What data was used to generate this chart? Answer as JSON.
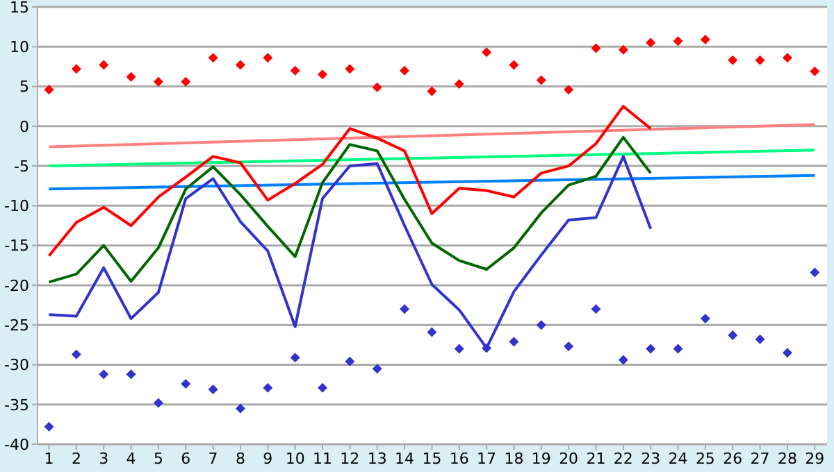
{
  "chart_data": {
    "type": "line",
    "x": [
      1,
      2,
      3,
      4,
      5,
      6,
      7,
      8,
      9,
      10,
      11,
      12,
      13,
      14,
      15,
      16,
      17,
      18,
      19,
      20,
      21,
      22,
      23,
      24,
      25,
      26,
      27,
      28,
      29
    ],
    "xlim": [
      0.58,
      29.45
    ],
    "xticks": [
      1,
      2,
      3,
      4,
      5,
      6,
      7,
      8,
      9,
      10,
      11,
      12,
      13,
      14,
      15,
      16,
      17,
      18,
      19,
      20,
      21,
      22,
      23,
      24,
      25,
      26,
      27,
      28,
      29
    ],
    "ylim": [
      -40,
      15
    ],
    "yticks": [
      -40,
      -35,
      -30,
      -25,
      -20,
      -15,
      -10,
      -5,
      0,
      5,
      10,
      15
    ],
    "grid": "y",
    "marker": "none",
    "line_style": "solid",
    "series": [
      {
        "color": "#ff8080",
        "values": [
          -2.6,
          null,
          null,
          null,
          null,
          null,
          null,
          null,
          null,
          null,
          null,
          null,
          null,
          null,
          null,
          null,
          null,
          null,
          null,
          null,
          null,
          null,
          null,
          null,
          null,
          null,
          null,
          null,
          0.2
        ]
      },
      {
        "color": "#00ff80",
        "values": [
          -5.0,
          null,
          null,
          null,
          null,
          null,
          null,
          null,
          null,
          null,
          null,
          null,
          null,
          null,
          null,
          null,
          null,
          null,
          null,
          null,
          null,
          null,
          null,
          null,
          null,
          null,
          null,
          null,
          -3.0
        ]
      },
      {
        "color": "#0080ff",
        "values": [
          -7.9,
          null,
          null,
          null,
          null,
          null,
          null,
          null,
          null,
          null,
          null,
          null,
          null,
          null,
          null,
          null,
          null,
          null,
          null,
          null,
          null,
          null,
          null,
          null,
          null,
          null,
          null,
          null,
          -6.2
        ]
      },
      {
        "color": "#ff0000",
        "values": [
          -16.3,
          -12.1,
          -10.2,
          -12.5,
          -8.9,
          -6.4,
          -3.8,
          -4.6,
          -9.3,
          -7.2,
          -4.8,
          -0.3,
          -1.5,
          -3.1,
          -11.0,
          -7.8,
          -8.1,
          -8.9,
          -5.9,
          -5.0,
          -2.2,
          2.5,
          -0.3,
          null,
          null,
          null,
          null,
          null,
          null
        ]
      },
      {
        "color": "#006600",
        "values": [
          -19.6,
          -18.6,
          -15.0,
          -19.5,
          -15.3,
          -7.9,
          -5.1,
          -8.6,
          -12.6,
          -16.4,
          -7.1,
          -2.3,
          -3.1,
          -9.2,
          -14.7,
          -16.9,
          -18.0,
          -15.3,
          -10.9,
          -7.4,
          -6.3,
          -1.4,
          -5.9,
          null,
          null,
          null,
          null,
          null,
          null
        ]
      },
      {
        "color": "#3333cc",
        "values": [
          -23.7,
          -23.9,
          -17.8,
          -24.2,
          -20.9,
          -9.1,
          -6.6,
          -12.0,
          -15.7,
          -25.2,
          -9.1,
          -5.0,
          -4.7,
          -12.5,
          -19.9,
          -23.1,
          -27.9,
          -20.8,
          -16.2,
          -11.8,
          -11.5,
          -3.8,
          -12.9,
          null,
          null,
          null,
          null,
          null,
          null
        ]
      },
      {
        "type": "scatter",
        "color": "#ff0000",
        "marker": "diamond",
        "values": [
          4.6,
          7.2,
          7.7,
          6.2,
          5.6,
          5.6,
          8.6,
          7.7,
          8.6,
          7.0,
          6.5,
          7.2,
          4.9,
          7.0,
          4.4,
          5.3,
          9.3,
          7.7,
          5.8,
          4.6,
          9.8,
          9.6,
          10.5,
          10.7,
          10.9,
          8.3,
          8.3,
          8.6,
          6.9
        ]
      },
      {
        "type": "scatter",
        "color": "#3333cc",
        "marker": "diamond",
        "values": [
          -37.8,
          -28.7,
          -31.2,
          -31.2,
          -34.8,
          -32.4,
          -33.1,
          -35.5,
          -32.9,
          -29.1,
          -32.9,
          -29.6,
          -30.5,
          -23.0,
          -25.9,
          -28.0,
          -27.9,
          -27.1,
          -25.0,
          -27.7,
          -23.0,
          -29.4,
          -28.0,
          -28.0,
          -24.2,
          -26.3,
          -26.8,
          -28.5,
          -18.4
        ]
      }
    ]
  }
}
